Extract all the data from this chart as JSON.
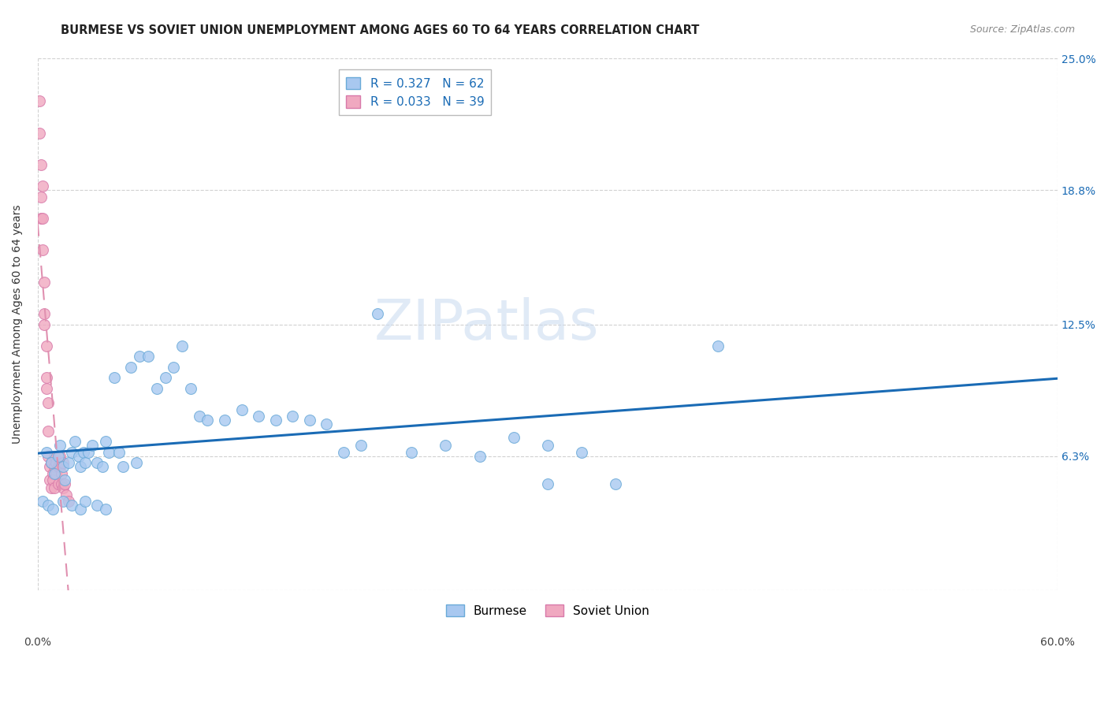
{
  "title": "BURMESE VS SOVIET UNION UNEMPLOYMENT AMONG AGES 60 TO 64 YEARS CORRELATION CHART",
  "source": "Source: ZipAtlas.com",
  "ylabel": "Unemployment Among Ages 60 to 64 years",
  "xlim": [
    0.0,
    0.6
  ],
  "ylim": [
    0.0,
    0.25
  ],
  "yticks": [
    0.0,
    0.063,
    0.125,
    0.188,
    0.25
  ],
  "ytick_labels": [
    "",
    "6.3%",
    "12.5%",
    "18.8%",
    "25.0%"
  ],
  "xtick_labels": [
    "0.0%",
    "60.0%"
  ],
  "background_color": "#ffffff",
  "grid_color": "#cccccc",
  "watermark": "ZIPatlas",
  "burmese_color": "#a8c8f0",
  "burmese_edge_color": "#6aaad8",
  "soviet_color": "#f0a8c0",
  "soviet_edge_color": "#d87aaa",
  "burmese_line_color": "#1a6bb5",
  "soviet_line_color": "#e090b0",
  "burmese_R": 0.327,
  "burmese_N": 62,
  "soviet_R": 0.033,
  "soviet_N": 39,
  "burmese_x": [
    0.005,
    0.008,
    0.01,
    0.012,
    0.013,
    0.015,
    0.016,
    0.018,
    0.02,
    0.022,
    0.024,
    0.025,
    0.027,
    0.028,
    0.03,
    0.032,
    0.035,
    0.038,
    0.04,
    0.042,
    0.045,
    0.048,
    0.05,
    0.055,
    0.058,
    0.06,
    0.065,
    0.07,
    0.075,
    0.08,
    0.085,
    0.09,
    0.095,
    0.1,
    0.11,
    0.12,
    0.13,
    0.14,
    0.15,
    0.16,
    0.17,
    0.18,
    0.19,
    0.2,
    0.22,
    0.24,
    0.26,
    0.28,
    0.3,
    0.32,
    0.34,
    0.003,
    0.006,
    0.009,
    0.015,
    0.02,
    0.025,
    0.028,
    0.035,
    0.04,
    0.3,
    0.4
  ],
  "burmese_y": [
    0.065,
    0.06,
    0.055,
    0.063,
    0.068,
    0.058,
    0.052,
    0.06,
    0.065,
    0.07,
    0.063,
    0.058,
    0.065,
    0.06,
    0.065,
    0.068,
    0.06,
    0.058,
    0.07,
    0.065,
    0.1,
    0.065,
    0.058,
    0.105,
    0.06,
    0.11,
    0.11,
    0.095,
    0.1,
    0.105,
    0.115,
    0.095,
    0.082,
    0.08,
    0.08,
    0.085,
    0.082,
    0.08,
    0.082,
    0.08,
    0.078,
    0.065,
    0.068,
    0.13,
    0.065,
    0.068,
    0.063,
    0.072,
    0.068,
    0.065,
    0.05,
    0.042,
    0.04,
    0.038,
    0.042,
    0.04,
    0.038,
    0.042,
    0.04,
    0.038,
    0.05,
    0.115
  ],
  "soviet_x": [
    0.001,
    0.001,
    0.002,
    0.002,
    0.002,
    0.003,
    0.003,
    0.003,
    0.004,
    0.004,
    0.004,
    0.005,
    0.005,
    0.005,
    0.006,
    0.006,
    0.006,
    0.007,
    0.007,
    0.008,
    0.008,
    0.009,
    0.009,
    0.01,
    0.01,
    0.01,
    0.011,
    0.011,
    0.012,
    0.012,
    0.013,
    0.013,
    0.014,
    0.014,
    0.015,
    0.015,
    0.016,
    0.017,
    0.018
  ],
  "soviet_y": [
    0.23,
    0.215,
    0.2,
    0.185,
    0.175,
    0.19,
    0.175,
    0.16,
    0.145,
    0.13,
    0.125,
    0.115,
    0.1,
    0.095,
    0.088,
    0.075,
    0.063,
    0.058,
    0.052,
    0.048,
    0.06,
    0.055,
    0.052,
    0.058,
    0.048,
    0.063,
    0.06,
    0.055,
    0.058,
    0.05,
    0.063,
    0.058,
    0.055,
    0.05,
    0.06,
    0.048,
    0.05,
    0.045,
    0.042
  ],
  "title_fontsize": 10.5,
  "axis_label_fontsize": 10,
  "tick_fontsize": 10,
  "legend_fontsize": 11,
  "source_fontsize": 9,
  "marker_size": 100
}
